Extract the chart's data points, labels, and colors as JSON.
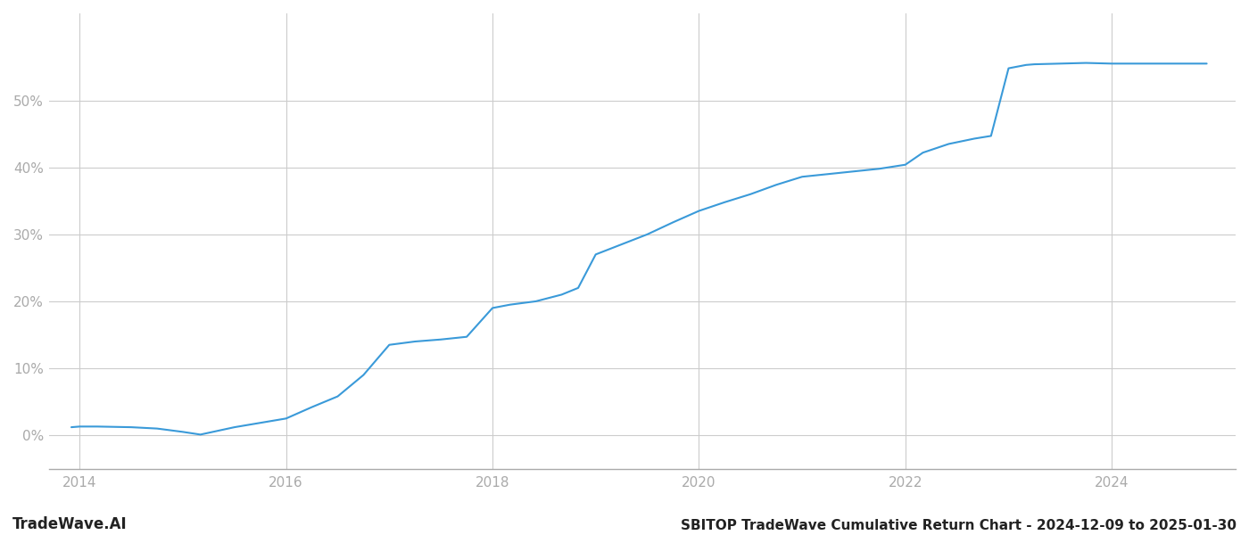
{
  "title": "SBITOP TradeWave Cumulative Return Chart - 2024-12-09 to 2025-01-30",
  "watermark": "TradeWave.AI",
  "line_color": "#3a9ad9",
  "background_color": "#ffffff",
  "grid_color": "#cccccc",
  "x_values": [
    2013.92,
    2014.0,
    2014.17,
    2014.5,
    2014.75,
    2015.0,
    2015.17,
    2015.5,
    2016.0,
    2016.25,
    2016.5,
    2016.75,
    2017.0,
    2017.25,
    2017.5,
    2017.75,
    2018.0,
    2018.17,
    2018.42,
    2018.67,
    2018.83,
    2019.0,
    2019.25,
    2019.5,
    2019.75,
    2020.0,
    2020.25,
    2020.5,
    2020.75,
    2021.0,
    2021.25,
    2021.5,
    2021.75,
    2022.0,
    2022.17,
    2022.42,
    2022.67,
    2022.83,
    2023.0,
    2023.17,
    2023.25,
    2023.5,
    2023.75,
    2024.0,
    2024.25,
    2024.5,
    2024.75,
    2024.92
  ],
  "y_values": [
    0.012,
    0.013,
    0.013,
    0.012,
    0.01,
    0.005,
    0.001,
    0.012,
    0.025,
    0.042,
    0.058,
    0.09,
    0.135,
    0.14,
    0.143,
    0.147,
    0.19,
    0.195,
    0.2,
    0.21,
    0.22,
    0.27,
    0.285,
    0.3,
    0.318,
    0.335,
    0.348,
    0.36,
    0.374,
    0.386,
    0.39,
    0.394,
    0.398,
    0.404,
    0.422,
    0.435,
    0.443,
    0.447,
    0.548,
    0.553,
    0.554,
    0.555,
    0.556,
    0.555,
    0.555,
    0.555,
    0.555,
    0.555
  ],
  "xlim": [
    2013.7,
    2025.2
  ],
  "ylim": [
    -0.05,
    0.63
  ],
  "xticks": [
    2014,
    2016,
    2018,
    2020,
    2022,
    2024
  ],
  "yticks": [
    0.0,
    0.1,
    0.2,
    0.3,
    0.4,
    0.5
  ],
  "line_width": 1.5,
  "tick_color": "#aaaaaa",
  "title_fontsize": 11,
  "watermark_fontsize": 12
}
